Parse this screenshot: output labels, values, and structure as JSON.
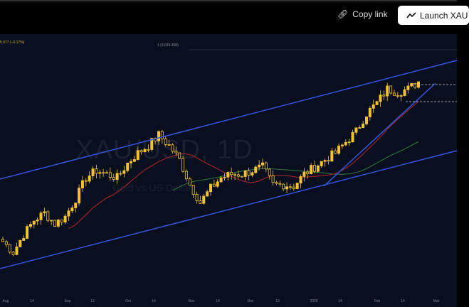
{
  "header": {
    "copy_link_label": "Copy link",
    "launch_label": "Launch XAU"
  },
  "chart": {
    "price_change": "5.077 (−0.17%)",
    "fib_label": "1 (3,036.458)",
    "watermark_symbol": "XAU/USD, 1D",
    "watermark_name": "Gold vs US Dollar",
    "x_ticks": [
      "Aug",
      "14",
      "Sep",
      "13",
      "Oct",
      "14",
      "Nov",
      "14",
      "Dec",
      "13",
      "2025",
      "14",
      "Feb",
      "14",
      "Mar"
    ]
  },
  "chart_data": {
    "type": "candlestick",
    "symbol": "XAU/USD",
    "interval": "1D",
    "approx_closes": [
      2416,
      2380,
      2439,
      2487,
      2511,
      2475,
      2499,
      2558,
      2629,
      2653,
      2641,
      2629,
      2677,
      2712,
      2736,
      2772,
      2736,
      2689,
      2606,
      2546,
      2594,
      2629,
      2641,
      2641,
      2653,
      2665,
      2606,
      2606,
      2601,
      2641,
      2665,
      2689,
      2712,
      2748,
      2784,
      2843,
      2879,
      2926,
      2914,
      2926,
      2950
    ],
    "colors": {
      "up": "#f2c230",
      "down": "#f2c230",
      "channel": "#3355dd",
      "ma_fast": "#b02a2a",
      "ma_slow": "#2f7a3a",
      "background": "#0a0f1f"
    }
  }
}
